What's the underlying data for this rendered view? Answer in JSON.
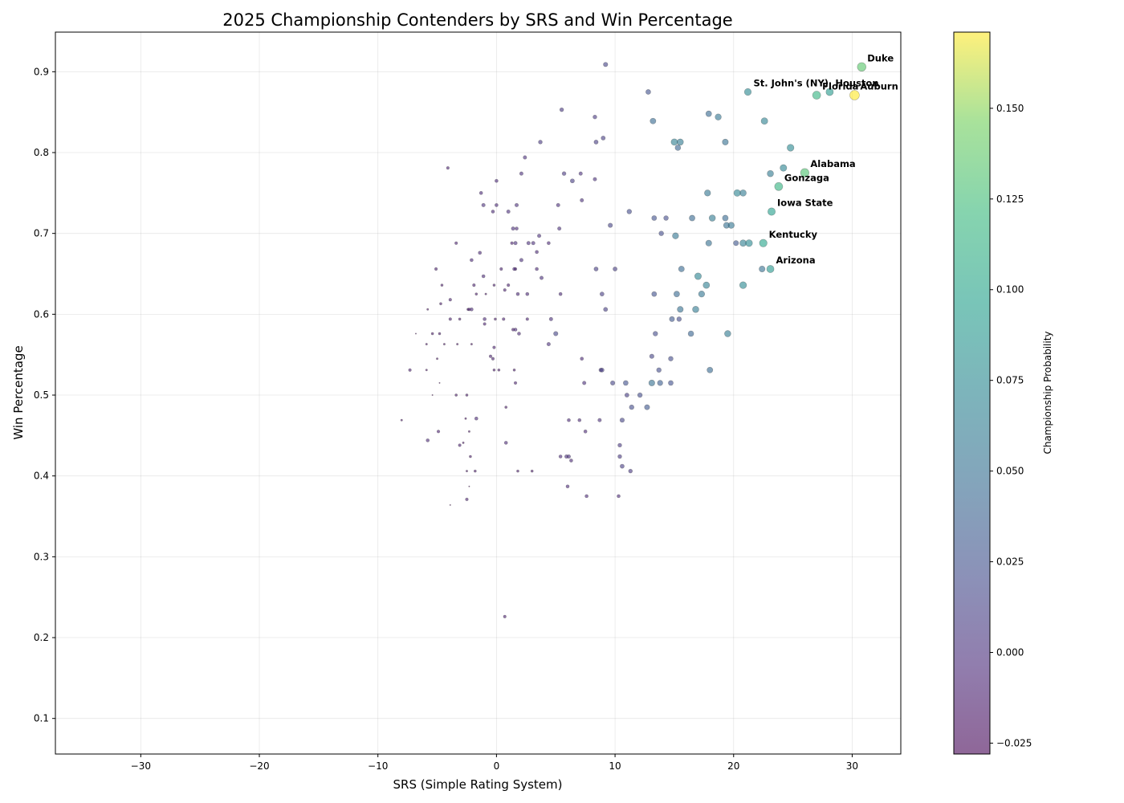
{
  "chart_data": {
    "type": "scatter",
    "title": "2025 Championship Contenders by SRS and Win Percentage",
    "xlabel": "SRS (Simple Rating System)",
    "ylabel": "Win Percentage",
    "xlim": [
      -37.2,
      34.1
    ],
    "ylim": [
      0.056,
      0.949
    ],
    "xticks": [
      -30,
      -20,
      -10,
      0,
      10,
      20,
      30
    ],
    "yticks": [
      0.1,
      0.2,
      0.3,
      0.4,
      0.5,
      0.6,
      0.7,
      0.8,
      0.9
    ],
    "x_tick_labels": [
      "−30",
      "−20",
      "−10",
      "0",
      "10",
      "20",
      "30"
    ],
    "y_tick_labels": [
      "0.1",
      "0.2",
      "0.3",
      "0.4",
      "0.5",
      "0.6",
      "0.7",
      "0.8",
      "0.9"
    ],
    "grid": true,
    "colorbar": {
      "label": "Championship Probability",
      "range": [
        -0.028,
        0.171
      ],
      "ticks": [
        -0.025,
        0.0,
        0.025,
        0.05,
        0.075,
        0.1,
        0.125,
        0.15
      ],
      "tick_labels": [
        "−0.025",
        "0.000",
        "0.025",
        "0.050",
        "0.075",
        "0.100",
        "0.125",
        "0.150"
      ],
      "colormap": "viridis"
    },
    "point_alpha": 0.6,
    "points": [
      {
        "x": 30.8,
        "y": 0.906,
        "p": 0.135,
        "label": "Duke"
      },
      {
        "x": 30.2,
        "y": 0.871,
        "p": 0.171,
        "label": "Auburn"
      },
      {
        "x": 28.1,
        "y": 0.875,
        "p": 0.09,
        "label": "Houston"
      },
      {
        "x": 27.0,
        "y": 0.871,
        "p": 0.115,
        "label": "Florida"
      },
      {
        "x": 21.2,
        "y": 0.875,
        "p": 0.075,
        "label": "St. John's (NY)"
      },
      {
        "x": 26.0,
        "y": 0.775,
        "p": 0.13,
        "label": "Alabama"
      },
      {
        "x": 23.8,
        "y": 0.758,
        "p": 0.115,
        "label": "Gonzaga"
      },
      {
        "x": 23.2,
        "y": 0.727,
        "p": 0.095,
        "label": "Iowa State"
      },
      {
        "x": 22.5,
        "y": 0.688,
        "p": 0.1,
        "label": "Kentucky"
      },
      {
        "x": 23.1,
        "y": 0.656,
        "p": 0.088,
        "label": "Arizona"
      },
      {
        "x": 24.8,
        "y": 0.806,
        "p": 0.075
      },
      {
        "x": 24.2,
        "y": 0.781,
        "p": 0.07
      },
      {
        "x": 22.6,
        "y": 0.839,
        "p": 0.068
      },
      {
        "x": 23.1,
        "y": 0.774,
        "p": 0.06
      },
      {
        "x": 20.3,
        "y": 0.75,
        "p": 0.07
      },
      {
        "x": 20.8,
        "y": 0.75,
        "p": 0.06
      },
      {
        "x": 21.3,
        "y": 0.688,
        "p": 0.075
      },
      {
        "x": 20.8,
        "y": 0.688,
        "p": 0.065
      },
      {
        "x": 20.2,
        "y": 0.688,
        "p": 0.03
      },
      {
        "x": 22.4,
        "y": 0.656,
        "p": 0.05
      },
      {
        "x": 20.8,
        "y": 0.636,
        "p": 0.075
      },
      {
        "x": 19.5,
        "y": 0.576,
        "p": 0.06
      },
      {
        "x": 18.7,
        "y": 0.844,
        "p": 0.055
      },
      {
        "x": 17.9,
        "y": 0.848,
        "p": 0.045
      },
      {
        "x": 19.3,
        "y": 0.813,
        "p": 0.05
      },
      {
        "x": 17.8,
        "y": 0.75,
        "p": 0.055
      },
      {
        "x": 18.2,
        "y": 0.719,
        "p": 0.06
      },
      {
        "x": 19.3,
        "y": 0.719,
        "p": 0.045
      },
      {
        "x": 19.4,
        "y": 0.71,
        "p": 0.05
      },
      {
        "x": 19.8,
        "y": 0.71,
        "p": 0.055
      },
      {
        "x": 17.9,
        "y": 0.688,
        "p": 0.05
      },
      {
        "x": 16.5,
        "y": 0.719,
        "p": 0.045
      },
      {
        "x": 17.0,
        "y": 0.647,
        "p": 0.07
      },
      {
        "x": 17.7,
        "y": 0.636,
        "p": 0.065
      },
      {
        "x": 17.3,
        "y": 0.625,
        "p": 0.055
      },
      {
        "x": 15.6,
        "y": 0.656,
        "p": 0.045
      },
      {
        "x": 16.8,
        "y": 0.606,
        "p": 0.06
      },
      {
        "x": 15.5,
        "y": 0.606,
        "p": 0.05
      },
      {
        "x": 15.2,
        "y": 0.625,
        "p": 0.045
      },
      {
        "x": 16.4,
        "y": 0.576,
        "p": 0.04
      },
      {
        "x": 14.8,
        "y": 0.594,
        "p": 0.03
      },
      {
        "x": 15.4,
        "y": 0.594,
        "p": 0.02
      },
      {
        "x": 18.0,
        "y": 0.531,
        "p": 0.045
      },
      {
        "x": 15.1,
        "y": 0.697,
        "p": 0.055
      },
      {
        "x": 15.0,
        "y": 0.813,
        "p": 0.065
      },
      {
        "x": 15.5,
        "y": 0.813,
        "p": 0.06
      },
      {
        "x": 15.3,
        "y": 0.806,
        "p": 0.04
      },
      {
        "x": 13.2,
        "y": 0.839,
        "p": 0.045
      },
      {
        "x": 12.8,
        "y": 0.875,
        "p": 0.025
      },
      {
        "x": 13.9,
        "y": 0.7,
        "p": 0.02
      },
      {
        "x": 13.3,
        "y": 0.719,
        "p": 0.025
      },
      {
        "x": 14.3,
        "y": 0.719,
        "p": 0.02
      },
      {
        "x": 13.3,
        "y": 0.625,
        "p": 0.025
      },
      {
        "x": 13.4,
        "y": 0.576,
        "p": 0.02
      },
      {
        "x": 13.1,
        "y": 0.548,
        "p": 0.015
      },
      {
        "x": 14.7,
        "y": 0.545,
        "p": 0.02
      },
      {
        "x": 13.7,
        "y": 0.531,
        "p": 0.02
      },
      {
        "x": 13.1,
        "y": 0.515,
        "p": 0.05
      },
      {
        "x": 13.8,
        "y": 0.515,
        "p": 0.035
      },
      {
        "x": 14.7,
        "y": 0.515,
        "p": 0.025
      },
      {
        "x": 12.1,
        "y": 0.5,
        "p": 0.02
      },
      {
        "x": 11.4,
        "y": 0.485,
        "p": 0.02
      },
      {
        "x": 12.7,
        "y": 0.485,
        "p": 0.03
      },
      {
        "x": 10.9,
        "y": 0.515,
        "p": 0.025
      },
      {
        "x": 9.8,
        "y": 0.515,
        "p": 0.015
      },
      {
        "x": 11.0,
        "y": 0.5,
        "p": 0.01
      },
      {
        "x": 10.6,
        "y": 0.469,
        "p": 0.015
      },
      {
        "x": 11.2,
        "y": 0.727,
        "p": 0.02
      },
      {
        "x": 9.6,
        "y": 0.71,
        "p": 0.015
      },
      {
        "x": 10.0,
        "y": 0.656,
        "p": 0.01
      },
      {
        "x": 8.4,
        "y": 0.656,
        "p": 0.01
      },
      {
        "x": 9.2,
        "y": 0.606,
        "p": 0.01
      },
      {
        "x": 8.9,
        "y": 0.625,
        "p": 0.01
      },
      {
        "x": 9.2,
        "y": 0.909,
        "p": 0.015
      },
      {
        "x": 9.0,
        "y": 0.818,
        "p": 0.01
      },
      {
        "x": 8.4,
        "y": 0.813,
        "p": 0.01
      },
      {
        "x": 8.3,
        "y": 0.844,
        "p": 0.005
      },
      {
        "x": 8.3,
        "y": 0.767,
        "p": 0.0
      },
      {
        "x": 7.1,
        "y": 0.774,
        "p": 0.0
      },
      {
        "x": 6.4,
        "y": 0.765,
        "p": 0.01
      },
      {
        "x": 5.7,
        "y": 0.774,
        "p": 0.005
      },
      {
        "x": 7.2,
        "y": 0.741,
        "p": 0.0
      },
      {
        "x": 5.5,
        "y": 0.853,
        "p": 0.005
      },
      {
        "x": 3.7,
        "y": 0.813,
        "p": 0.005
      },
      {
        "x": 2.4,
        "y": 0.794,
        "p": 0.0
      },
      {
        "x": 2.1,
        "y": 0.774,
        "p": 0.0
      },
      {
        "x": 5.2,
        "y": 0.735,
        "p": 0.0
      },
      {
        "x": 5.3,
        "y": 0.706,
        "p": 0.0
      },
      {
        "x": 3.6,
        "y": 0.697,
        "p": 0.0
      },
      {
        "x": 2.7,
        "y": 0.688,
        "p": 0.0
      },
      {
        "x": 3.1,
        "y": 0.688,
        "p": 0.0
      },
      {
        "x": 4.4,
        "y": 0.688,
        "p": -0.005
      },
      {
        "x": 3.4,
        "y": 0.677,
        "p": -0.005
      },
      {
        "x": 2.1,
        "y": 0.667,
        "p": 0.0
      },
      {
        "x": 3.4,
        "y": 0.656,
        "p": -0.005
      },
      {
        "x": 3.8,
        "y": 0.645,
        "p": 0.0
      },
      {
        "x": 1.7,
        "y": 0.735,
        "p": 0.0
      },
      {
        "x": 1.4,
        "y": 0.706,
        "p": 0.0
      },
      {
        "x": 1.7,
        "y": 0.706,
        "p": -0.005
      },
      {
        "x": 1.6,
        "y": 0.688,
        "p": 0.0
      },
      {
        "x": 1.3,
        "y": 0.688,
        "p": -0.01
      },
      {
        "x": 1.5,
        "y": 0.656,
        "p": -0.005
      },
      {
        "x": 1.6,
        "y": 0.656,
        "p": -0.01
      },
      {
        "x": 1.0,
        "y": 0.727,
        "p": 0.0
      },
      {
        "x": 0.0,
        "y": 0.735,
        "p": -0.005
      },
      {
        "x": -0.3,
        "y": 0.727,
        "p": -0.005
      },
      {
        "x": 0.0,
        "y": 0.765,
        "p": -0.005
      },
      {
        "x": -1.1,
        "y": 0.735,
        "p": 0.0
      },
      {
        "x": -1.3,
        "y": 0.75,
        "p": -0.005
      },
      {
        "x": -4.1,
        "y": 0.781,
        "p": -0.01
      },
      {
        "x": -1.4,
        "y": 0.676,
        "p": -0.005
      },
      {
        "x": -2.1,
        "y": 0.667,
        "p": -0.005
      },
      {
        "x": -3.4,
        "y": 0.688,
        "p": -0.01
      },
      {
        "x": 0.4,
        "y": 0.656,
        "p": -0.01
      },
      {
        "x": -1.1,
        "y": 0.647,
        "p": -0.005
      },
      {
        "x": 1.0,
        "y": 0.636,
        "p": -0.01
      },
      {
        "x": 0.7,
        "y": 0.63,
        "p": -0.01
      },
      {
        "x": 1.8,
        "y": 0.625,
        "p": -0.005
      },
      {
        "x": 2.6,
        "y": 0.625,
        "p": -0.005
      },
      {
        "x": 5.4,
        "y": 0.625,
        "p": -0.005
      },
      {
        "x": -0.2,
        "y": 0.636,
        "p": -0.015
      },
      {
        "x": -1.9,
        "y": 0.636,
        "p": -0.01
      },
      {
        "x": -5.1,
        "y": 0.656,
        "p": -0.01
      },
      {
        "x": -4.6,
        "y": 0.636,
        "p": -0.015
      },
      {
        "x": -1.7,
        "y": 0.625,
        "p": -0.015
      },
      {
        "x": -0.9,
        "y": 0.625,
        "p": -0.02
      },
      {
        "x": -3.9,
        "y": 0.618,
        "p": -0.01
      },
      {
        "x": -4.7,
        "y": 0.613,
        "p": -0.015
      },
      {
        "x": -2.3,
        "y": 0.606,
        "p": -0.01
      },
      {
        "x": -2.1,
        "y": 0.606,
        "p": -0.005
      },
      {
        "x": -2.4,
        "y": 0.606,
        "p": -0.015
      },
      {
        "x": -5.8,
        "y": 0.606,
        "p": -0.02
      },
      {
        "x": -1.0,
        "y": 0.594,
        "p": -0.005
      },
      {
        "x": -1.0,
        "y": 0.588,
        "p": -0.01
      },
      {
        "x": -0.1,
        "y": 0.594,
        "p": -0.015
      },
      {
        "x": 0.6,
        "y": 0.594,
        "p": -0.01
      },
      {
        "x": 2.6,
        "y": 0.594,
        "p": -0.01
      },
      {
        "x": 4.6,
        "y": 0.594,
        "p": 0.0
      },
      {
        "x": 5.0,
        "y": 0.576,
        "p": 0.015
      },
      {
        "x": 1.6,
        "y": 0.581,
        "p": -0.005
      },
      {
        "x": 1.4,
        "y": 0.581,
        "p": -0.01
      },
      {
        "x": 1.9,
        "y": 0.576,
        "p": -0.005
      },
      {
        "x": -3.1,
        "y": 0.594,
        "p": -0.015
      },
      {
        "x": -3.9,
        "y": 0.594,
        "p": -0.01
      },
      {
        "x": -4.8,
        "y": 0.576,
        "p": -0.015
      },
      {
        "x": -5.4,
        "y": 0.576,
        "p": -0.015
      },
      {
        "x": -6.8,
        "y": 0.576,
        "p": -0.025
      },
      {
        "x": -5.9,
        "y": 0.563,
        "p": -0.02
      },
      {
        "x": -4.4,
        "y": 0.563,
        "p": -0.02
      },
      {
        "x": -3.3,
        "y": 0.563,
        "p": -0.02
      },
      {
        "x": -2.1,
        "y": 0.563,
        "p": -0.02
      },
      {
        "x": -0.2,
        "y": 0.559,
        "p": -0.01
      },
      {
        "x": 4.4,
        "y": 0.563,
        "p": 0.0
      },
      {
        "x": -0.5,
        "y": 0.548,
        "p": -0.01
      },
      {
        "x": -0.3,
        "y": 0.545,
        "p": -0.01
      },
      {
        "x": -5.0,
        "y": 0.545,
        "p": -0.02
      },
      {
        "x": -7.3,
        "y": 0.531,
        "p": -0.01
      },
      {
        "x": -5.9,
        "y": 0.531,
        "p": -0.02
      },
      {
        "x": -0.2,
        "y": 0.531,
        "p": -0.015
      },
      {
        "x": 0.2,
        "y": 0.531,
        "p": -0.015
      },
      {
        "x": 1.5,
        "y": 0.531,
        "p": -0.015
      },
      {
        "x": 7.2,
        "y": 0.545,
        "p": -0.005
      },
      {
        "x": 8.8,
        "y": 0.531,
        "p": 0.005
      },
      {
        "x": 8.9,
        "y": 0.531,
        "p": 0.01
      },
      {
        "x": 7.4,
        "y": 0.515,
        "p": 0.0
      },
      {
        "x": 1.6,
        "y": 0.515,
        "p": -0.01
      },
      {
        "x": -4.8,
        "y": 0.515,
        "p": -0.025
      },
      {
        "x": -3.4,
        "y": 0.5,
        "p": -0.015
      },
      {
        "x": -2.5,
        "y": 0.5,
        "p": -0.015
      },
      {
        "x": -5.4,
        "y": 0.5,
        "p": -0.025
      },
      {
        "x": 0.8,
        "y": 0.485,
        "p": -0.015
      },
      {
        "x": -1.7,
        "y": 0.471,
        "p": -0.005
      },
      {
        "x": -2.6,
        "y": 0.471,
        "p": -0.02
      },
      {
        "x": -8.0,
        "y": 0.469,
        "p": -0.02
      },
      {
        "x": 6.1,
        "y": 0.469,
        "p": -0.005
      },
      {
        "x": 7.0,
        "y": 0.469,
        "p": -0.005
      },
      {
        "x": 8.7,
        "y": 0.469,
        "p": 0.0
      },
      {
        "x": 7.5,
        "y": 0.455,
        "p": -0.005
      },
      {
        "x": -4.9,
        "y": 0.455,
        "p": -0.01
      },
      {
        "x": -2.3,
        "y": 0.455,
        "p": -0.02
      },
      {
        "x": -5.8,
        "y": 0.444,
        "p": -0.005
      },
      {
        "x": 0.8,
        "y": 0.441,
        "p": -0.005
      },
      {
        "x": -3.1,
        "y": 0.438,
        "p": -0.01
      },
      {
        "x": -2.8,
        "y": 0.441,
        "p": -0.02
      },
      {
        "x": 10.4,
        "y": 0.438,
        "p": 0.005
      },
      {
        "x": 10.4,
        "y": 0.424,
        "p": 0.005
      },
      {
        "x": 5.4,
        "y": 0.424,
        "p": -0.005
      },
      {
        "x": 5.9,
        "y": 0.424,
        "p": 0.0
      },
      {
        "x": 6.1,
        "y": 0.424,
        "p": 0.0
      },
      {
        "x": 6.3,
        "y": 0.419,
        "p": -0.005
      },
      {
        "x": -2.2,
        "y": 0.424,
        "p": -0.015
      },
      {
        "x": 10.6,
        "y": 0.412,
        "p": 0.01
      },
      {
        "x": 11.3,
        "y": 0.406,
        "p": 0.005
      },
      {
        "x": 1.8,
        "y": 0.406,
        "p": -0.015
      },
      {
        "x": 3.0,
        "y": 0.406,
        "p": -0.015
      },
      {
        "x": -1.8,
        "y": 0.406,
        "p": -0.015
      },
      {
        "x": -2.5,
        "y": 0.406,
        "p": -0.02
      },
      {
        "x": 6.0,
        "y": 0.387,
        "p": -0.005
      },
      {
        "x": -2.3,
        "y": 0.387,
        "p": -0.025
      },
      {
        "x": 7.6,
        "y": 0.375,
        "p": -0.005
      },
      {
        "x": 10.3,
        "y": 0.375,
        "p": -0.005
      },
      {
        "x": -2.5,
        "y": 0.371,
        "p": -0.01
      },
      {
        "x": -3.9,
        "y": 0.364,
        "p": -0.025
      },
      {
        "x": 0.7,
        "y": 0.226,
        "p": -0.01
      }
    ]
  }
}
